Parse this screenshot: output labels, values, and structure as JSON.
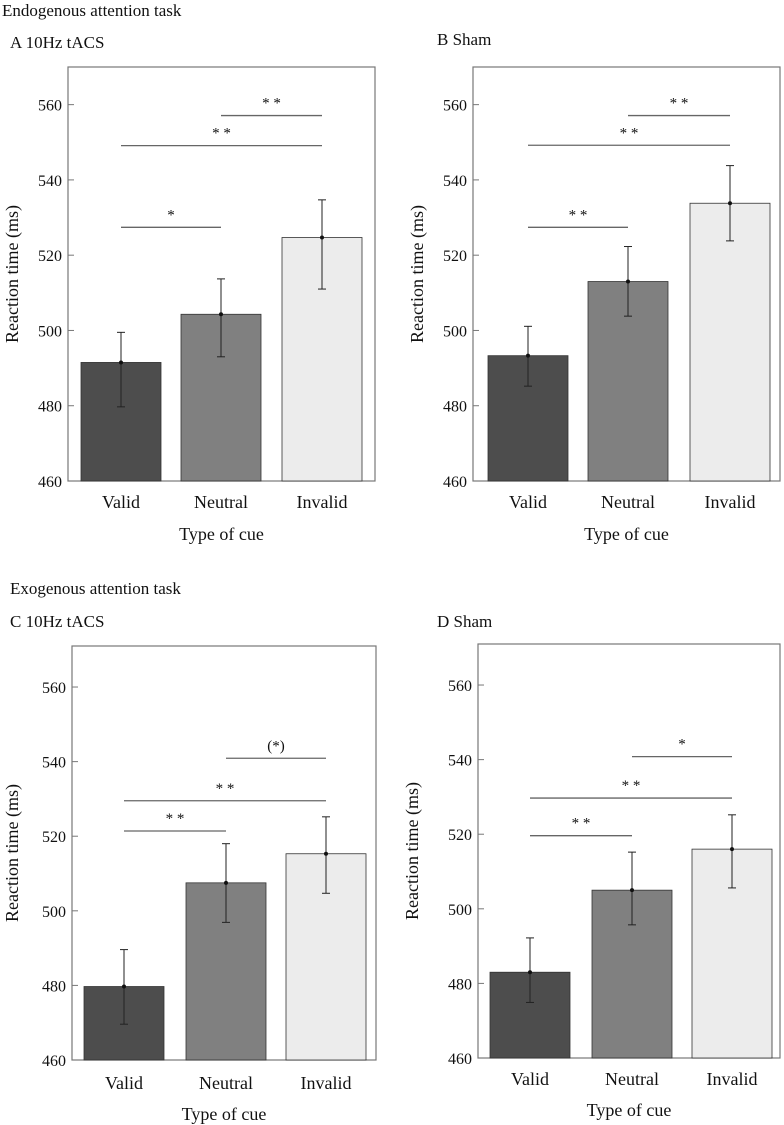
{
  "sections": [
    {
      "title": "Endogenous attention task"
    },
    {
      "title": "Exogenous attention task"
    }
  ],
  "colors": {
    "bars": [
      "#4d4d4d",
      "#808080",
      "#ececec"
    ],
    "bar_stroke": "#333333",
    "frame": "#777777",
    "sig_line": "#666666"
  },
  "chart_data": [
    {
      "type": "bar",
      "panel_label": "A 10Hz tACS",
      "categories": [
        "Valid",
        "Neutral",
        "Invalid"
      ],
      "values": [
        491.5,
        504.3,
        524.7
      ],
      "error_low": [
        479.7,
        493.0,
        511.0
      ],
      "error_high": [
        499.5,
        513.7,
        534.7
      ],
      "xlabel": "Type of cue",
      "ylabel": "Reaction time (ms)",
      "ylim": [
        460,
        570
      ],
      "yticks": [
        460,
        480,
        500,
        520,
        540,
        560
      ],
      "significance": [
        {
          "from": 0,
          "to": 1,
          "y": 527.4,
          "label": "*"
        },
        {
          "from": 0,
          "to": 2,
          "y": 549.1,
          "label": "* *"
        },
        {
          "from": 1,
          "to": 2,
          "y": 557.1,
          "label": "* *"
        }
      ]
    },
    {
      "type": "bar",
      "panel_label": "B Sham",
      "categories": [
        "Valid",
        "Neutral",
        "Invalid"
      ],
      "values": [
        493.3,
        513.0,
        533.8
      ],
      "error_low": [
        485.2,
        503.8,
        523.8
      ],
      "error_high": [
        501.1,
        522.3,
        543.8
      ],
      "xlabel": "Type of cue",
      "ylabel": "Reaction time (ms)",
      "ylim": [
        460,
        570
      ],
      "yticks": [
        460,
        480,
        500,
        520,
        540,
        560
      ],
      "significance": [
        {
          "from": 0,
          "to": 1,
          "y": 527.4,
          "label": "* *"
        },
        {
          "from": 0,
          "to": 2,
          "y": 549.2,
          "label": "* *"
        },
        {
          "from": 1,
          "to": 2,
          "y": 557.1,
          "label": "* *"
        }
      ]
    },
    {
      "type": "bar",
      "panel_label": "C 10Hz tACS",
      "categories": [
        "Valid",
        "Neutral",
        "Invalid"
      ],
      "values": [
        479.7,
        507.5,
        515.3
      ],
      "error_low": [
        469.6,
        496.9,
        504.7
      ],
      "error_high": [
        489.6,
        518.0,
        525.2
      ],
      "xlabel": "Type of cue",
      "ylabel": "Reaction time (ms)",
      "ylim": [
        460,
        571
      ],
      "yticks": [
        460,
        480,
        500,
        520,
        540,
        560
      ],
      "significance": [
        {
          "from": 0,
          "to": 1,
          "y": 521.4,
          "label": "* *"
        },
        {
          "from": 0,
          "to": 2,
          "y": 529.5,
          "label": "* *"
        },
        {
          "from": 1,
          "to": 2,
          "y": 540.9,
          "label": "(*)"
        }
      ]
    },
    {
      "type": "bar",
      "panel_label": "D Sham",
      "categories": [
        "Valid",
        "Neutral",
        "Invalid"
      ],
      "values": [
        483.0,
        505.0,
        516.0
      ],
      "error_low": [
        474.9,
        495.7,
        505.6
      ],
      "error_high": [
        492.2,
        515.2,
        525.2
      ],
      "xlabel": "Type of cue",
      "ylabel": "Reaction time (ms)",
      "ylim": [
        460,
        571
      ],
      "yticks": [
        460,
        480,
        500,
        520,
        540,
        560
      ],
      "significance": [
        {
          "from": 0,
          "to": 1,
          "y": 519.6,
          "label": "* *"
        },
        {
          "from": 0,
          "to": 2,
          "y": 529.7,
          "label": "* *"
        },
        {
          "from": 1,
          "to": 2,
          "y": 540.8,
          "label": "*"
        }
      ]
    }
  ]
}
